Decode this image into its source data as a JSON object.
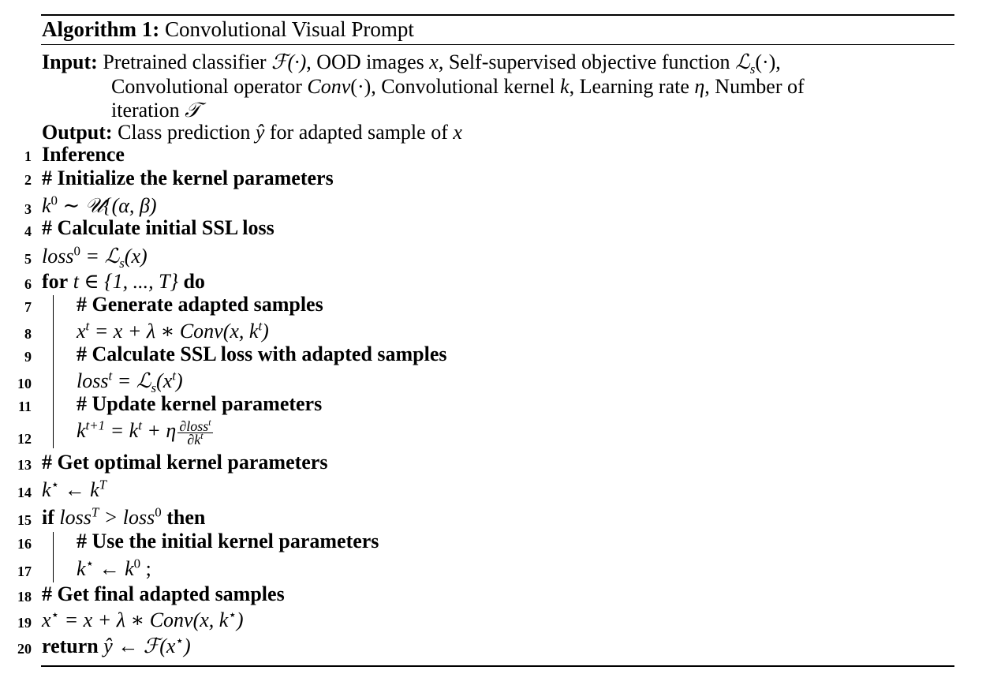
{
  "algorithm": {
    "label": "Algorithm 1:",
    "title": "Convolutional Visual Prompt"
  },
  "input": {
    "label": "Input:",
    "line1_a": "Pretrained classifier ",
    "line1_m1": "ℱ(·)",
    "line1_b": ", OOD images ",
    "line1_m2": "x",
    "line1_c": ", Self-supervised objective function ",
    "line1_m3": "ℒ",
    "line1_m3_sub": "s",
    "line1_m3_tail": "(·)",
    "line1_d": ",",
    "line2_a": "Convolutional operator ",
    "line2_m1": "Conv",
    "line2_m1_tail": "(·)",
    "line2_b": ", Convolutional kernel ",
    "line2_m2": "k",
    "line2_c": ", Learning rate ",
    "line2_m3": "η",
    "line2_d": ", Number of",
    "line3_a": "iteration ",
    "line3_m1": "𝒯"
  },
  "output": {
    "label": "Output:",
    "text_a": "Class prediction ",
    "m1": "ŷ",
    "text_b": " for adapted sample of ",
    "m2": "x"
  },
  "lines": {
    "n1": "1",
    "n2": "2",
    "n3": "3",
    "n4": "4",
    "n5": "5",
    "n6": "6",
    "n7": "7",
    "n8": "8",
    "n9": "9",
    "n10": "10",
    "n11": "11",
    "n12": "12",
    "n13": "13",
    "n14": "14",
    "n15": "15",
    "n16": "16",
    "n17": "17",
    "n18": "18",
    "n19": "19",
    "n20": "20",
    "l1": "Inference",
    "l2": "# Initialize the kernel parameters",
    "l3_k": "k",
    "l3_sup": "0",
    "l3_rest": " ∼ 𝒰{(α, β)",
    "l4": "# Calculate initial SSL loss",
    "l5_loss": "loss",
    "l5_sup": "0",
    "l5_eq": " = ℒ",
    "l5_sub": "s",
    "l5_tail": "(x)",
    "l6_for": "for",
    "l6_math": " t ∈ {1, ..., T} ",
    "l6_do": "do",
    "l7": "# Generate adapted samples",
    "l8_x": "x",
    "l8_sup": "t",
    "l8_rest": " = x + λ ∗ Conv(x, k",
    "l8_sup2": "t",
    "l8_close": ")",
    "l9": "# Calculate SSL loss with adapted samples",
    "l10_loss": "loss",
    "l10_sup": "t",
    "l10_eq": " = ℒ",
    "l10_sub": "s",
    "l10_tail": "(x",
    "l10_sup2": "t",
    "l10_close": ")",
    "l11": "# Update kernel parameters",
    "l12_k": "k",
    "l12_sup": "t+1",
    "l12_eq": " = k",
    "l12_sup2": "t",
    "l12_plus": " + η",
    "l12_num": "∂loss",
    "l12_num_sup": "t",
    "l12_den": "∂k",
    "l12_den_sup": "t",
    "l13": "# Get optimal kernel parameters",
    "l14_k": "k",
    "l14_sup": "⋆",
    "l14_arrow": " ← k",
    "l14_sup2": "T",
    "l15_if": "if",
    "l15_loss": " loss",
    "l15_sup": "T",
    "l15_gt": " > loss",
    "l15_sup2": "0",
    "l15_then": " then",
    "l16": "# Use the initial kernel parameters",
    "l17_k": "k",
    "l17_sup": "⋆",
    "l17_arrow": " ← k",
    "l17_sup2": "0",
    "l17_semi": " ;",
    "l18": "# Get final adapted samples",
    "l19_x": "x",
    "l19_sup": "⋆",
    "l19_rest": " = x + λ ∗ Conv(x, k",
    "l19_sup2": "⋆",
    "l19_close": ")",
    "l20_ret": "return",
    "l20_math": " ŷ ← ℱ(x",
    "l20_sup": "⋆",
    "l20_close": ")"
  }
}
